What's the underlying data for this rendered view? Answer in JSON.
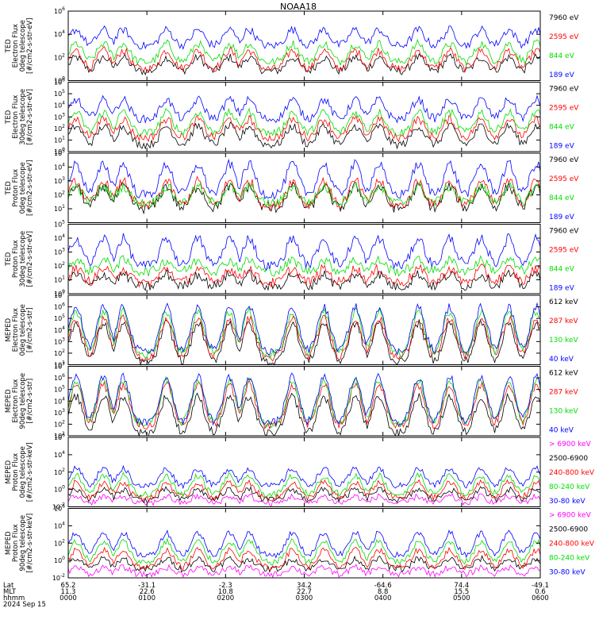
{
  "title": "NOAA18",
  "colors": {
    "black": "#000000",
    "red": "#ff0000",
    "green": "#00dd00",
    "blue": "#0000ff",
    "magenta": "#ff00ff"
  },
  "chart_data": [
    {
      "type": "line",
      "ylabel": [
        "TED",
        "Electron Flux",
        "0deg telescope",
        "[#/cm2-s-str-eV]"
      ],
      "ylim_exp": [
        0,
        6
      ],
      "ytick_exps": [
        0,
        2,
        4,
        6
      ],
      "legend": [
        "7960 eV",
        "2595 eV",
        "844 eV",
        "189 eV"
      ],
      "legend_colors": [
        "black",
        "red",
        "green",
        "blue"
      ],
      "series": [
        {
          "name": "7960 eV",
          "color": "black",
          "base": 0.8,
          "peak": 2.0
        },
        {
          "name": "2595 eV",
          "color": "red",
          "base": 1.0,
          "peak": 2.6
        },
        {
          "name": "844 eV",
          "color": "green",
          "base": 1.6,
          "peak": 3.2
        },
        {
          "name": "189 eV",
          "color": "blue",
          "base": 3.0,
          "peak": 4.4
        }
      ]
    },
    {
      "type": "line",
      "ylabel": [
        "TED",
        "Electron Flux",
        "30deg telescope",
        "[#/cm2-s-str-eV]"
      ],
      "ylim_exp": [
        0,
        6
      ],
      "ytick_exps": [
        0,
        1,
        2,
        3,
        4,
        5,
        6
      ],
      "legend": [
        "7960 eV",
        "2595 eV",
        "844 eV",
        "189 eV"
      ],
      "legend_colors": [
        "black",
        "red",
        "green",
        "blue"
      ],
      "series": [
        {
          "name": "7960 eV",
          "color": "black",
          "base": 0.6,
          "peak": 2.2
        },
        {
          "name": "2595 eV",
          "color": "red",
          "base": 1.2,
          "peak": 2.8
        },
        {
          "name": "844 eV",
          "color": "green",
          "base": 1.6,
          "peak": 3.4
        },
        {
          "name": "189 eV",
          "color": "blue",
          "base": 2.8,
          "peak": 4.5
        }
      ]
    },
    {
      "type": "line",
      "ylabel": [
        "TED",
        "Proton Flux",
        "0deg telescope",
        "[#/cm2-s-str-eV]"
      ],
      "ylim_exp": [
        0,
        5
      ],
      "ytick_exps": [
        1,
        2,
        3,
        4,
        5
      ],
      "legend": [
        "7960 eV",
        "2595 eV",
        "844 eV",
        "189 eV"
      ],
      "legend_colors": [
        "black",
        "red",
        "green",
        "blue"
      ],
      "series": [
        {
          "name": "7960 eV",
          "color": "black",
          "base": 1.0,
          "peak": 2.6
        },
        {
          "name": "2595 eV",
          "color": "red",
          "base": 1.2,
          "peak": 3.0
        },
        {
          "name": "844 eV",
          "color": "green",
          "base": 1.4,
          "peak": 2.6
        },
        {
          "name": "189 eV",
          "color": "blue",
          "base": 2.0,
          "peak": 4.2
        }
      ]
    },
    {
      "type": "line",
      "ylabel": [
        "TED",
        "Proton Flux",
        "30deg telescope",
        "[#/cm2-s-str-eV]"
      ],
      "ylim_exp": [
        0,
        5
      ],
      "ytick_exps": [
        0,
        1,
        2,
        3,
        4,
        5
      ],
      "legend": [
        "7960 eV",
        "2595 eV",
        "844 eV",
        "189 eV"
      ],
      "legend_colors": [
        "black",
        "red",
        "green",
        "blue"
      ],
      "series": [
        {
          "name": "7960 eV",
          "color": "black",
          "base": 0.5,
          "peak": 1.4
        },
        {
          "name": "2595 eV",
          "color": "red",
          "base": 0.8,
          "peak": 1.8
        },
        {
          "name": "844 eV",
          "color": "green",
          "base": 1.6,
          "peak": 2.4
        },
        {
          "name": "189 eV",
          "color": "blue",
          "base": 2.0,
          "peak": 4.0
        }
      ]
    },
    {
      "type": "line",
      "ylabel": [
        "MEPED",
        "Electron Flux",
        "0deg telescope",
        "[#/cm2-s-str]"
      ],
      "ylim_exp": [
        1,
        7
      ],
      "ytick_exps": [
        1,
        2,
        3,
        4,
        5,
        6,
        7
      ],
      "legend": [
        "612 keV",
        "287 keV",
        "130 keV",
        "40 keV"
      ],
      "legend_colors": [
        "black",
        "red",
        "green",
        "blue"
      ],
      "series": [
        {
          "name": "612 keV",
          "color": "black",
          "base": 1.2,
          "peak": 4.6
        },
        {
          "name": "287 keV",
          "color": "red",
          "base": 1.6,
          "peak": 5.0
        },
        {
          "name": "130 keV",
          "color": "green",
          "base": 1.9,
          "peak": 5.6
        },
        {
          "name": "40 keV",
          "color": "blue",
          "base": 2.1,
          "peak": 6.0
        }
      ]
    },
    {
      "type": "line",
      "ylabel": [
        "MEPED",
        "Electron Flux",
        "90deg telescope",
        "[#/cm2-s-str]"
      ],
      "ylim_exp": [
        1,
        7
      ],
      "ytick_exps": [
        1,
        2,
        3,
        4,
        5,
        6,
        7
      ],
      "legend": [
        "612 keV",
        "287 keV",
        "130 keV",
        "40 keV"
      ],
      "legend_colors": [
        "black",
        "red",
        "green",
        "blue"
      ],
      "series": [
        {
          "name": "612 keV",
          "color": "black",
          "base": 1.2,
          "peak": 4.4
        },
        {
          "name": "287 keV",
          "color": "red",
          "base": 1.8,
          "peak": 5.4
        },
        {
          "name": "130 keV",
          "color": "green",
          "base": 2.0,
          "peak": 5.8
        },
        {
          "name": "40 keV",
          "color": "blue",
          "base": 2.1,
          "peak": 6.1
        }
      ]
    },
    {
      "type": "line",
      "ylabel": [
        "MEPED",
        "Proton Flux",
        "0deg telescope",
        "[#/cm2-s-str-keV]"
      ],
      "ylim_exp": [
        -2,
        6
      ],
      "ytick_exps": [
        -2,
        0,
        2,
        4,
        6
      ],
      "legend": [
        "> 6900 keV",
        "2500-6900",
        "240-800 keV",
        "80-240 keV",
        "30-80 keV"
      ],
      "legend_colors": [
        "magenta",
        "black",
        "red",
        "green",
        "blue"
      ],
      "series": [
        {
          "name": "> 6900 keV",
          "color": "magenta",
          "base": -1.6,
          "peak": -0.8
        },
        {
          "name": "2500-6900",
          "color": "black",
          "base": -1.2,
          "peak": 0.0
        },
        {
          "name": "240-800 keV",
          "color": "red",
          "base": -1.0,
          "peak": 0.8
        },
        {
          "name": "80-240 keV",
          "color": "green",
          "base": -0.6,
          "peak": 1.6
        },
        {
          "name": "30-80 keV",
          "color": "blue",
          "base": 0.4,
          "peak": 2.4
        }
      ]
    },
    {
      "type": "line",
      "ylabel": [
        "MEPED",
        "Proton Flux",
        "90deg telescope",
        "[#/cm2-s-str-keV]"
      ],
      "ylim_exp": [
        -2,
        6
      ],
      "ytick_exps": [
        -2,
        0,
        2,
        4,
        6
      ],
      "legend": [
        "> 6900 keV",
        "2500-6900",
        "240-800 keV",
        "80-240 keV",
        "30-80 keV"
      ],
      "legend_colors": [
        "magenta",
        "black",
        "red",
        "green",
        "blue"
      ],
      "series": [
        {
          "name": "> 6900 keV",
          "color": "magenta",
          "base": -1.6,
          "peak": -0.8
        },
        {
          "name": "2500-6900",
          "color": "black",
          "base": -1.0,
          "peak": 0.2
        },
        {
          "name": "240-800 keV",
          "color": "red",
          "base": -0.8,
          "peak": 1.2
        },
        {
          "name": "80-240 keV",
          "color": "green",
          "base": -0.2,
          "peak": 2.2
        },
        {
          "name": "30-80 keV",
          "color": "blue",
          "base": 0.6,
          "peak": 3.2
        }
      ]
    }
  ],
  "x_axis": {
    "row_labels": [
      "Lat",
      "MLT",
      "hhmm",
      "2024 Sep 15"
    ],
    "ticks": [
      {
        "lat": "65.2",
        "mlt": "11.3",
        "hhmm": "0000"
      },
      {
        "lat": "-31.1",
        "mlt": "22.6",
        "hhmm": "0100"
      },
      {
        "lat": "-2.3",
        "mlt": "10.8",
        "hhmm": "0200"
      },
      {
        "lat": "34.2",
        "mlt": "22.7",
        "hhmm": "0300"
      },
      {
        "lat": "-64.6",
        "mlt": "8.8",
        "hhmm": "0400"
      },
      {
        "lat": "74.4",
        "mlt": "15.5",
        "hhmm": "0500"
      },
      {
        "lat": "-49.1",
        "mlt": "0.6",
        "hhmm": "0600"
      }
    ]
  },
  "event_centers_hours": [
    0.1,
    0.45,
    0.7,
    1.25,
    1.65,
    2.05,
    2.3,
    2.85,
    3.25,
    3.65,
    3.95,
    4.45,
    4.85,
    5.25,
    5.6,
    5.95
  ]
}
